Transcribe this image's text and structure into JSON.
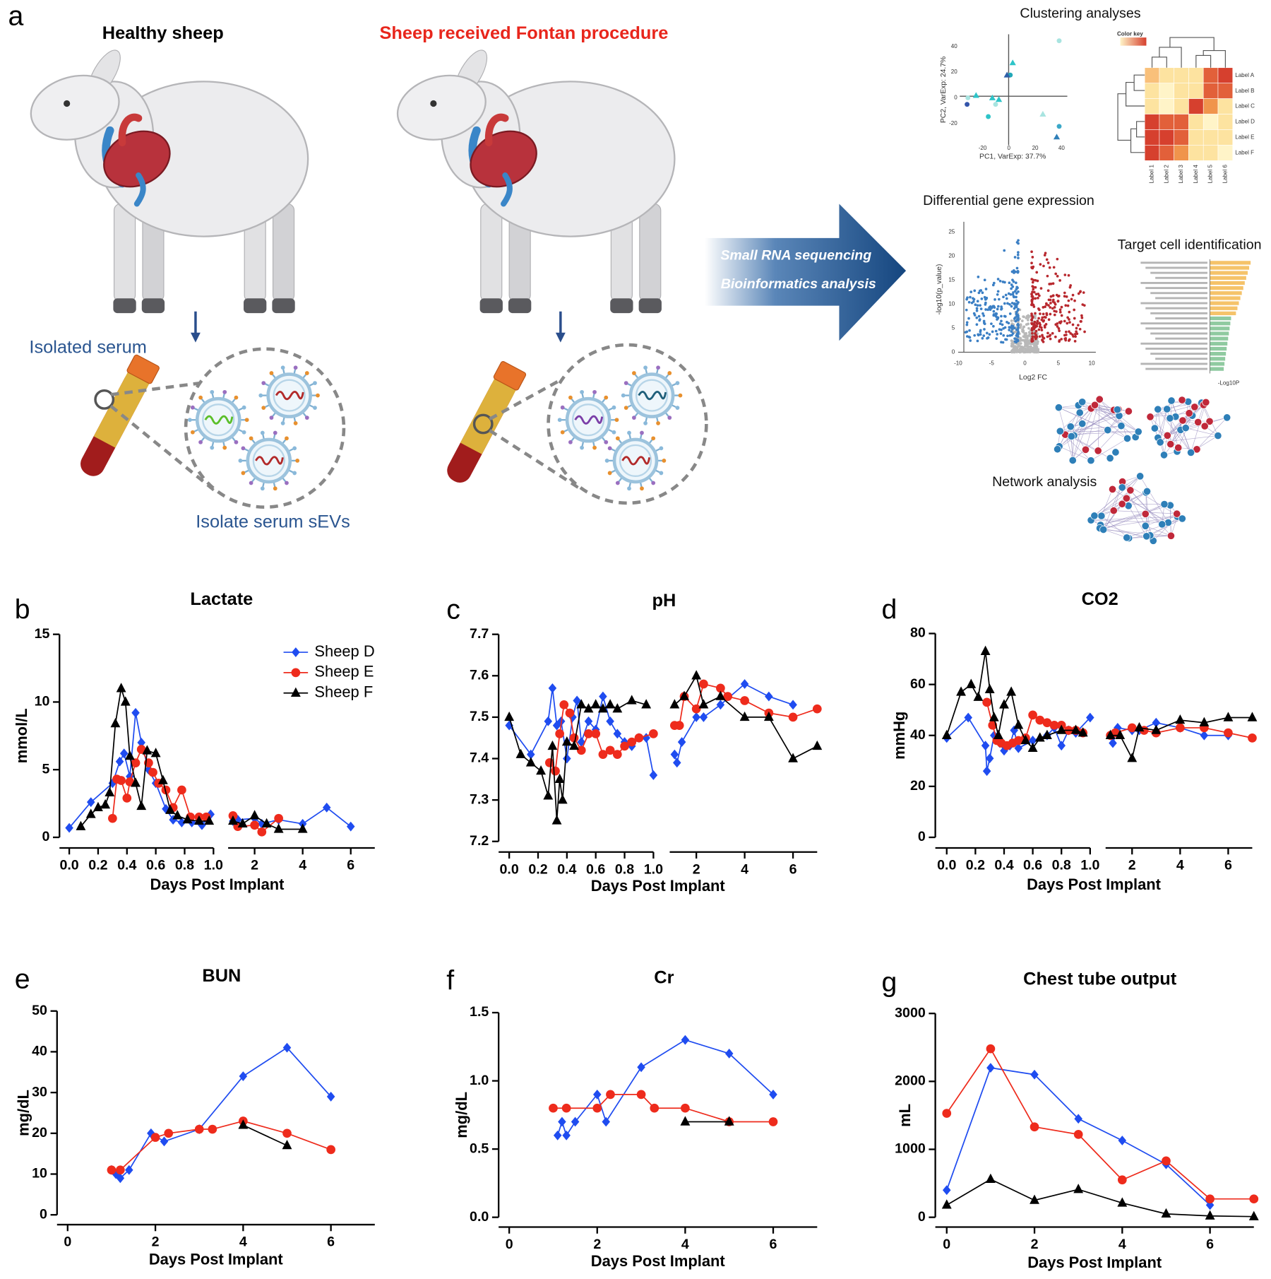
{
  "figure": {
    "panel_label": "a",
    "healthy_title": "Healthy sheep",
    "fontan_title": "Sheep received Fontan procedure",
    "serum_label": "Isolated serum",
    "sev_label": "Isolate serum sEVs",
    "arrow_lines": [
      "Small RNA sequencing",
      "Bioinformatics analysis"
    ],
    "clustering": {
      "title": "Clustering analyses",
      "pca_xlabel": "PC1, VarExp: 37.7%",
      "pca_ylabel": "PC2, VarExp: 24.7%",
      "pca_xticks": [
        "-20",
        "0",
        "20",
        "40"
      ],
      "pca_yticks": [
        "40",
        "20",
        "0",
        "-20"
      ],
      "color_key": "Color key",
      "row_labels": [
        "Label A",
        "Label B",
        "Label C",
        "Label D",
        "Label E",
        "Label F"
      ],
      "col_labels": [
        "Label 1",
        "Label 2",
        "Label 3",
        "Label 4",
        "Label 5",
        "Label 6"
      ]
    },
    "dge": {
      "title": "Differential gene expression",
      "xlabel": "Log2 FC",
      "ylabel": "-log10(p_value)",
      "xticks": [
        "-10",
        "-5",
        "0",
        "5",
        "10"
      ],
      "yticks": [
        "0",
        "5",
        "10",
        "15",
        "20",
        "25"
      ]
    },
    "target": {
      "title": "Target cell identification",
      "xlabel": "-Log10P"
    },
    "network": {
      "title": "Network analysis"
    }
  },
  "chart_data": [
    {
      "type": "line",
      "panel": "b",
      "title": "Lactate",
      "ylabel": "mmol/L",
      "xlabel": "Days Post Implant",
      "ylim": [
        0,
        15
      ],
      "yticks": [
        0,
        5,
        10,
        15
      ],
      "x_segments": [
        {
          "xlim": [
            0,
            1
          ],
          "xticks": [
            {
              "value": 0,
              "label": "0.0"
            },
            0.2,
            0.4,
            0.6,
            0.8,
            {
              "value": 1,
              "label": "1.0"
            }
          ]
        },
        {
          "xlim": [
            1,
            7
          ],
          "xticks": [
            2,
            4,
            6
          ]
        }
      ],
      "legend": "upper right",
      "series": [
        {
          "name": "Sheep D",
          "color": "#1f4cf0",
          "marker": "diamond",
          "x": [
            0,
            0.15,
            0.3,
            0.35,
            0.38,
            0.42,
            0.46,
            0.5,
            0.55,
            0.6,
            0.67,
            0.72,
            0.78,
            0.85,
            0.92,
            0.98,
            1.1,
            1.3,
            2,
            2.3,
            3,
            4,
            5,
            6
          ],
          "values": [
            0.7,
            2.6,
            4.0,
            5.6,
            6.2,
            4.5,
            9.2,
            7.0,
            5.0,
            4.0,
            2.1,
            1.3,
            1.1,
            1.1,
            0.9,
            1.7,
            1.2,
            1.3,
            1.4,
            1.0,
            1.3,
            1.0,
            2.2,
            0.8
          ]
        },
        {
          "name": "Sheep E",
          "color": "#ee2b1c",
          "marker": "circle",
          "x": [
            0.3,
            0.33,
            0.36,
            0.4,
            0.42,
            0.46,
            0.5,
            0.55,
            0.58,
            0.62,
            0.67,
            0.72,
            0.78,
            0.84,
            0.9,
            0.95,
            1.1,
            1.3,
            2,
            2.3,
            3
          ],
          "values": [
            1.4,
            4.3,
            4.2,
            2.9,
            4.1,
            5.5,
            6.5,
            5.5,
            4.8,
            4.0,
            3.5,
            2.2,
            3.5,
            1.5,
            1.5,
            1.5,
            1.6,
            0.8,
            0.9,
            0.4,
            1.4
          ]
        },
        {
          "name": "Sheep F",
          "color": "#000000",
          "marker": "triangle",
          "x": [
            0.08,
            0.15,
            0.2,
            0.25,
            0.28,
            0.32,
            0.36,
            0.39,
            0.42,
            0.46,
            0.5,
            0.54,
            0.6,
            0.65,
            0.7,
            0.75,
            0.82,
            0.9,
            0.97,
            1.1,
            1.5,
            2,
            2.5,
            3,
            4
          ],
          "values": [
            0.8,
            1.7,
            2.2,
            2.4,
            3.3,
            8.4,
            11.0,
            10.0,
            6.0,
            4.0,
            2.3,
            6.4,
            6.2,
            4.2,
            2.0,
            1.6,
            1.3,
            1.2,
            1.2,
            1.2,
            1.0,
            1.6,
            1.0,
            0.6,
            0.6
          ]
        }
      ]
    },
    {
      "type": "line",
      "panel": "c",
      "title": "pH",
      "xlabel": "Days Post Implant",
      "ylim": [
        7.2,
        7.7
      ],
      "yticks": [
        7.2,
        7.3,
        7.4,
        7.5,
        7.6,
        7.7
      ],
      "x_segments": [
        {
          "xlim": [
            0,
            1
          ],
          "xticks": [
            {
              "value": 0,
              "label": "0.0"
            },
            0.2,
            0.4,
            0.6,
            0.8,
            {
              "value": 1,
              "label": "1.0"
            }
          ]
        },
        {
          "xlim": [
            1,
            7
          ],
          "xticks": [
            2,
            4,
            6
          ]
        }
      ],
      "series": [
        {
          "color": "#1f4cf0",
          "marker": "diamond",
          "x": [
            0,
            0.15,
            0.27,
            0.3,
            0.33,
            0.36,
            0.4,
            0.44,
            0.47,
            0.5,
            0.55,
            0.6,
            0.65,
            0.7,
            0.75,
            0.8,
            0.85,
            0.9,
            0.95,
            1.0,
            1.1,
            1.2,
            1.4,
            2,
            2.3,
            3,
            4,
            5,
            6
          ],
          "values": [
            7.48,
            7.41,
            7.49,
            7.57,
            7.48,
            7.49,
            7.4,
            7.5,
            7.54,
            7.44,
            7.49,
            7.47,
            7.55,
            7.49,
            7.46,
            7.44,
            7.43,
            7.45,
            7.45,
            7.36,
            7.41,
            7.39,
            7.44,
            7.5,
            7.5,
            7.53,
            7.58,
            7.55,
            7.53
          ]
        },
        {
          "color": "#ee2b1c",
          "marker": "circle",
          "x": [
            0.28,
            0.32,
            0.35,
            0.38,
            0.42,
            0.45,
            0.5,
            0.55,
            0.6,
            0.65,
            0.7,
            0.75,
            0.8,
            0.85,
            0.9,
            1.0,
            1.1,
            1.3,
            1.5,
            2,
            2.3,
            3,
            3.3,
            4,
            5,
            6,
            7
          ],
          "values": [
            7.39,
            7.37,
            7.46,
            7.53,
            7.51,
            7.45,
            7.42,
            7.46,
            7.46,
            7.41,
            7.42,
            7.41,
            7.43,
            7.44,
            7.45,
            7.46,
            7.48,
            7.48,
            7.55,
            7.52,
            7.58,
            7.57,
            7.55,
            7.54,
            7.51,
            7.5,
            7.52
          ]
        },
        {
          "color": "#000000",
          "marker": "triangle",
          "x": [
            0,
            0.08,
            0.15,
            0.22,
            0.27,
            0.3,
            0.33,
            0.35,
            0.37,
            0.4,
            0.45,
            0.5,
            0.55,
            0.6,
            0.65,
            0.7,
            0.75,
            0.85,
            0.95,
            1.1,
            1.5,
            2,
            2.3,
            3,
            4,
            5,
            6,
            7
          ],
          "values": [
            7.5,
            7.41,
            7.39,
            7.37,
            7.31,
            7.43,
            7.25,
            7.35,
            7.3,
            7.44,
            7.43,
            7.53,
            7.52,
            7.53,
            7.52,
            7.53,
            7.52,
            7.54,
            7.53,
            7.53,
            7.55,
            7.6,
            7.53,
            7.55,
            7.5,
            7.5,
            7.4,
            7.43
          ]
        }
      ]
    },
    {
      "type": "line",
      "panel": "d",
      "title": "CO2",
      "ylabel": "mmHg",
      "xlabel": "Days Post Implant",
      "ylim": [
        0,
        80
      ],
      "yticks": [
        0,
        20,
        40,
        60,
        80
      ],
      "x_segments": [
        {
          "xlim": [
            0,
            1
          ],
          "xticks": [
            {
              "value": 0,
              "label": "0.0"
            },
            0.2,
            0.4,
            0.6,
            0.8,
            {
              "value": 1,
              "label": "1.0"
            }
          ]
        },
        {
          "xlim": [
            1,
            7
          ],
          "xticks": [
            2,
            4,
            6
          ]
        }
      ],
      "series": [
        {
          "color": "#1f4cf0",
          "marker": "diamond",
          "x": [
            0,
            0.15,
            0.27,
            0.28,
            0.3,
            0.33,
            0.37,
            0.4,
            0.44,
            0.47,
            0.5,
            0.6,
            0.7,
            0.75,
            0.8,
            0.85,
            0.9,
            1.0,
            1.1,
            1.2,
            1.4,
            2,
            2.3,
            3,
            4,
            5,
            6
          ],
          "values": [
            39,
            47,
            36,
            26,
            31,
            40,
            37,
            34,
            36,
            42,
            35,
            38,
            40,
            43,
            36,
            42,
            41,
            47,
            40,
            37,
            43,
            42,
            42,
            45,
            43,
            40,
            40
          ]
        },
        {
          "color": "#ee2b1c",
          "marker": "circle",
          "x": [
            0.28,
            0.32,
            0.35,
            0.38,
            0.42,
            0.46,
            0.5,
            0.55,
            0.6,
            0.65,
            0.7,
            0.75,
            0.8,
            0.85,
            0.9,
            0.95,
            1.1,
            1.3,
            2,
            2.5,
            3,
            4,
            5,
            6,
            7
          ],
          "values": [
            53,
            44,
            38,
            37,
            36,
            37,
            38,
            39,
            48,
            46,
            45,
            44,
            44,
            42,
            42,
            41,
            40,
            41,
            43,
            42,
            41,
            43,
            43,
            41,
            39
          ]
        },
        {
          "color": "#000000",
          "marker": "triangle",
          "x": [
            0,
            0.1,
            0.17,
            0.22,
            0.27,
            0.3,
            0.33,
            0.36,
            0.4,
            0.45,
            0.5,
            0.55,
            0.6,
            0.65,
            0.7,
            0.8,
            0.9,
            0.95,
            1.1,
            1.5,
            2,
            2.3,
            3,
            4,
            5,
            6,
            7
          ],
          "values": [
            40,
            57,
            60,
            55,
            73,
            58,
            47,
            40,
            52,
            57,
            44,
            38,
            35,
            39,
            40,
            42,
            42,
            41,
            40,
            40,
            31,
            43,
            42,
            46,
            45,
            47,
            47
          ]
        }
      ]
    },
    {
      "type": "line",
      "panel": "e",
      "title": "BUN",
      "ylabel": "mg/dL",
      "xlabel": "Days Post Implant",
      "ylim": [
        0,
        50
      ],
      "yticks": [
        0,
        10,
        20,
        30,
        40,
        50
      ],
      "xlim": [
        0,
        7
      ],
      "xticks": [
        0,
        2,
        4,
        6
      ],
      "series": [
        {
          "color": "#1f4cf0",
          "marker": "diamond",
          "x": [
            1,
            1.1,
            1.2,
            1.4,
            1.9,
            2.2,
            3,
            4,
            5,
            6
          ],
          "values": [
            11,
            10,
            9,
            11,
            20,
            18,
            21,
            34,
            41,
            29
          ]
        },
        {
          "color": "#ee2b1c",
          "marker": "circle",
          "x": [
            1,
            1.2,
            2,
            2.3,
            3,
            3.3,
            4,
            5,
            6
          ],
          "values": [
            11,
            11,
            19,
            20,
            21,
            21,
            23,
            20,
            16
          ]
        },
        {
          "color": "#000000",
          "marker": "triangle",
          "x": [
            4,
            5
          ],
          "values": [
            22,
            17
          ]
        }
      ]
    },
    {
      "type": "line",
      "panel": "f",
      "title": "Cr",
      "ylabel": "mg/dL",
      "xlabel": "Days Post Implant",
      "ylim": [
        0,
        1.5
      ],
      "yticks": [
        {
          "value": 0,
          "label": "0.0"
        },
        0.5,
        {
          "value": 1,
          "label": "1.0"
        },
        1.5
      ],
      "xlim": [
        0,
        7
      ],
      "xticks": [
        0,
        2,
        4,
        6
      ],
      "series": [
        {
          "color": "#1f4cf0",
          "marker": "diamond",
          "x": [
            1.1,
            1.2,
            1.3,
            1.5,
            2,
            2.2,
            3,
            4,
            5,
            6
          ],
          "values": [
            0.6,
            0.7,
            0.6,
            0.7,
            0.9,
            0.7,
            1.1,
            1.3,
            1.2,
            0.9
          ]
        },
        {
          "color": "#ee2b1c",
          "marker": "circle",
          "x": [
            1,
            1.3,
            2,
            2.3,
            3,
            3.3,
            4,
            5,
            6
          ],
          "values": [
            0.8,
            0.8,
            0.8,
            0.9,
            0.9,
            0.8,
            0.8,
            0.7,
            0.7
          ]
        },
        {
          "color": "#000000",
          "marker": "triangle",
          "x": [
            4,
            5
          ],
          "values": [
            0.7,
            0.7
          ]
        }
      ]
    },
    {
      "type": "line",
      "panel": "g",
      "title": "Chest tube output",
      "ylabel": "mL",
      "xlabel": "Days Post Implant",
      "ylim": [
        0,
        3000
      ],
      "yticks": [
        0,
        1000,
        2000,
        3000
      ],
      "xlim": [
        0,
        7
      ],
      "xticks": [
        0,
        2,
        4,
        6
      ],
      "series": [
        {
          "color": "#1f4cf0",
          "marker": "diamond",
          "x": [
            0,
            1,
            2,
            3,
            4,
            5,
            6
          ],
          "values": [
            400,
            2200,
            2100,
            1450,
            1130,
            780,
            180
          ]
        },
        {
          "color": "#ee2b1c",
          "marker": "circle",
          "x": [
            0,
            1,
            2,
            3,
            4,
            5,
            6,
            7
          ],
          "values": [
            1530,
            2480,
            1330,
            1220,
            550,
            830,
            270,
            270
          ]
        },
        {
          "color": "#000000",
          "marker": "triangle",
          "x": [
            0,
            1,
            2,
            3,
            4,
            5,
            6,
            7
          ],
          "values": [
            180,
            560,
            250,
            410,
            210,
            50,
            20,
            10
          ]
        }
      ]
    }
  ]
}
